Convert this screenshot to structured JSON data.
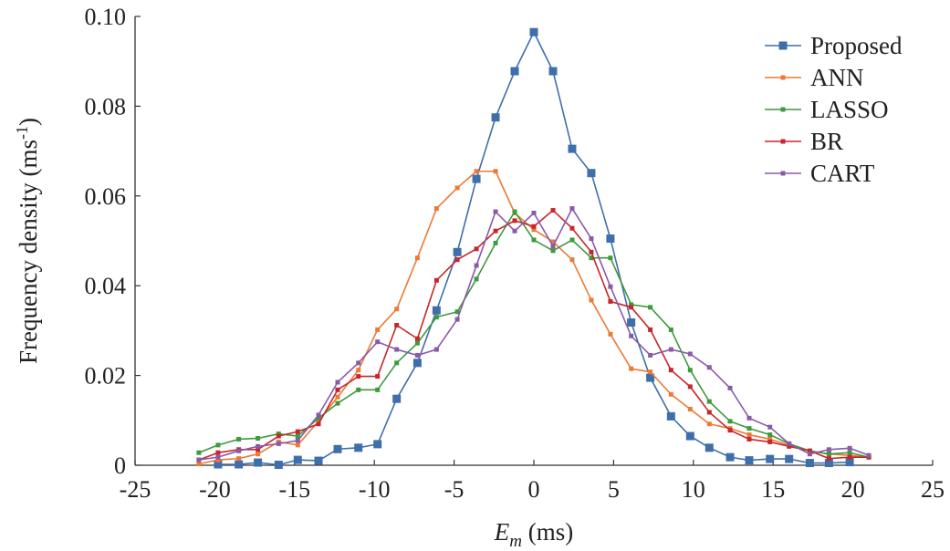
{
  "chart_data": {
    "type": "line",
    "xlabel": {
      "symbol": "E",
      "subscript": "m",
      "unit": " (ms)"
    },
    "ylabel": {
      "main": "Frequency density (ms",
      "sup": "-1",
      "close": ")"
    },
    "xlim": [
      -25,
      25
    ],
    "ylim": [
      0,
      0.1
    ],
    "xticks": [
      -25,
      -20,
      -15,
      -10,
      -5,
      0,
      5,
      10,
      15,
      20,
      25
    ],
    "yticks": [
      0,
      0.02,
      0.04,
      0.06,
      0.08,
      0.1
    ],
    "xtick_labels": [
      "-25",
      "-20",
      "-15",
      "-10",
      "-5",
      "0",
      "5",
      "10",
      "15",
      "20",
      "25"
    ],
    "ytick_labels": [
      "0",
      "0.02",
      "0.04",
      "0.06",
      "0.08",
      "0.10"
    ],
    "grid": false,
    "legend_position": "top-right",
    "series": [
      {
        "name": "Proposed",
        "color": "#3f6faa",
        "marker_size": 9,
        "x": [
          -19.8,
          -18.5,
          -17.3,
          -16.0,
          -14.8,
          -13.5,
          -12.3,
          -11.0,
          -9.8,
          -8.6,
          -7.3,
          -6.1,
          -4.8,
          -3.6,
          -2.4,
          -1.2,
          0,
          1.2,
          2.4,
          3.6,
          4.8,
          6.1,
          7.3,
          8.6,
          9.8,
          11.0,
          12.3,
          13.5,
          14.8,
          16.0,
          17.3,
          18.5,
          19.8
        ],
        "y": [
          0.0002,
          0.0002,
          0.0006,
          0.0001,
          0.0012,
          0.001,
          0.0036,
          0.0039,
          0.0047,
          0.0148,
          0.0228,
          0.0345,
          0.0475,
          0.0638,
          0.0775,
          0.0878,
          0.0965,
          0.0878,
          0.0705,
          0.0651,
          0.0505,
          0.0318,
          0.0195,
          0.0109,
          0.0065,
          0.0039,
          0.0018,
          0.0011,
          0.0014,
          0.0014,
          0.0005,
          0.0005,
          0.0007
        ]
      },
      {
        "name": "ANN",
        "color": "#ec7a34",
        "marker_size": 5,
        "x": [
          -21.0,
          -19.8,
          -18.5,
          -17.3,
          -16.0,
          -14.8,
          -13.5,
          -12.3,
          -11.0,
          -9.8,
          -8.6,
          -7.3,
          -6.1,
          -4.8,
          -3.6,
          -2.4,
          -1.2,
          0,
          1.2,
          2.4,
          3.6,
          4.8,
          6.1,
          7.3,
          8.6,
          9.8,
          11.0,
          12.3,
          13.5,
          14.8,
          16.0,
          17.3,
          18.5,
          19.8,
          21.0
        ],
        "y": [
          0.0003,
          0.0012,
          0.0015,
          0.0025,
          0.0052,
          0.0045,
          0.0098,
          0.0152,
          0.0212,
          0.0302,
          0.0348,
          0.0462,
          0.0572,
          0.0618,
          0.0655,
          0.0655,
          0.0562,
          0.0525,
          0.0498,
          0.0458,
          0.0368,
          0.0292,
          0.0215,
          0.0208,
          0.0158,
          0.0125,
          0.0092,
          0.0082,
          0.0068,
          0.0058,
          0.0045,
          0.0032,
          0.0025,
          0.0022,
          0.0018
        ]
      },
      {
        "name": "LASSO",
        "color": "#3d9a3d",
        "marker_size": 5,
        "x": [
          -21.0,
          -19.8,
          -18.5,
          -17.3,
          -16.0,
          -14.8,
          -13.5,
          -12.3,
          -11.0,
          -9.8,
          -8.6,
          -7.3,
          -6.1,
          -4.8,
          -3.6,
          -2.4,
          -1.2,
          0,
          1.2,
          2.4,
          3.6,
          4.8,
          6.1,
          7.3,
          8.6,
          9.8,
          11.0,
          12.3,
          13.5,
          14.8,
          16.0,
          17.3,
          18.5,
          19.8,
          21.0
        ],
        "y": [
          0.0028,
          0.0045,
          0.0058,
          0.006,
          0.007,
          0.0065,
          0.0105,
          0.0138,
          0.0168,
          0.0168,
          0.0228,
          0.0272,
          0.033,
          0.0342,
          0.0415,
          0.0495,
          0.0565,
          0.0502,
          0.0478,
          0.0502,
          0.0462,
          0.0462,
          0.0358,
          0.0352,
          0.0302,
          0.0212,
          0.0142,
          0.0098,
          0.0082,
          0.0068,
          0.0048,
          0.0032,
          0.0025,
          0.0028,
          0.0018
        ]
      },
      {
        "name": "BR",
        "color": "#c8262b",
        "marker_size": 5,
        "x": [
          -21.0,
          -19.8,
          -18.5,
          -17.3,
          -16.0,
          -14.8,
          -13.5,
          -12.3,
          -11.0,
          -9.8,
          -8.6,
          -7.3,
          -6.1,
          -4.8,
          -3.6,
          -2.4,
          -1.2,
          0,
          1.2,
          2.4,
          3.6,
          4.8,
          6.1,
          7.3,
          8.6,
          9.8,
          11.0,
          12.3,
          13.5,
          14.8,
          16.0,
          17.3,
          18.5,
          19.8,
          21.0
        ],
        "y": [
          0.0012,
          0.0028,
          0.0035,
          0.0035,
          0.0065,
          0.0075,
          0.0092,
          0.0168,
          0.0198,
          0.0198,
          0.0312,
          0.0282,
          0.0412,
          0.0458,
          0.0482,
          0.0522,
          0.0545,
          0.0532,
          0.0568,
          0.0528,
          0.0475,
          0.0365,
          0.0352,
          0.0302,
          0.0212,
          0.0175,
          0.0118,
          0.0078,
          0.0058,
          0.0052,
          0.0042,
          0.0032,
          0.0015,
          0.0018,
          0.0018
        ]
      },
      {
        "name": "CART",
        "color": "#8a5aa8",
        "marker_size": 5,
        "x": [
          -21.0,
          -19.8,
          -18.5,
          -17.3,
          -16.0,
          -14.8,
          -13.5,
          -12.3,
          -11.0,
          -9.8,
          -8.6,
          -7.3,
          -6.1,
          -4.8,
          -3.6,
          -2.4,
          -1.2,
          0,
          1.2,
          2.4,
          3.6,
          4.8,
          6.1,
          7.3,
          8.6,
          9.8,
          11.0,
          12.3,
          13.5,
          14.8,
          16.0,
          17.3,
          18.5,
          19.8,
          21.0
        ],
        "y": [
          0.0012,
          0.0018,
          0.0032,
          0.0042,
          0.0048,
          0.0055,
          0.0112,
          0.0185,
          0.0228,
          0.0275,
          0.0258,
          0.0245,
          0.0258,
          0.0325,
          0.0445,
          0.0565,
          0.0522,
          0.0562,
          0.0488,
          0.0572,
          0.0505,
          0.0398,
          0.0288,
          0.0245,
          0.0258,
          0.0248,
          0.0218,
          0.0172,
          0.0105,
          0.0085,
          0.0048,
          0.0025,
          0.0035,
          0.0038,
          0.0022
        ]
      }
    ]
  }
}
